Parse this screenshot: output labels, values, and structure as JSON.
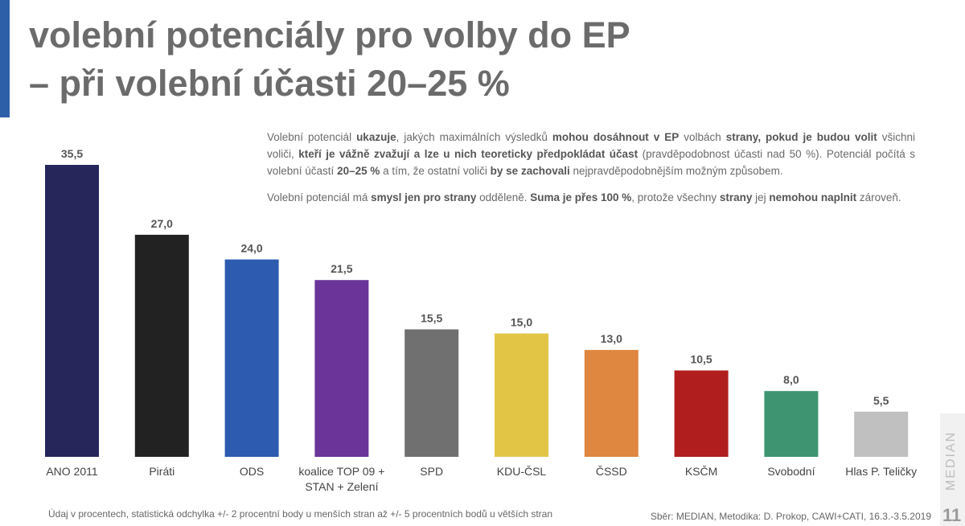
{
  "title": {
    "line1": "volební potenciály pro volby do EP",
    "line2": "– při volební účasti 20–25 %"
  },
  "note": {
    "p1": [
      {
        "t": "Volební potenciál ",
        "b": false
      },
      {
        "t": "ukazuje",
        "b": true
      },
      {
        "t": ", jakých maximálních výsledků ",
        "b": false
      },
      {
        "t": "mohou dosáhnout v EP",
        "b": true
      },
      {
        "t": " volbách ",
        "b": false
      },
      {
        "t": "strany, pokud je budou volit",
        "b": true
      },
      {
        "t": " všichni voliči, ",
        "b": false
      },
      {
        "t": "kteří je vážně zvažují a lze u nich teoreticky předpokládat účast",
        "b": true
      },
      {
        "t": " (pravděpodobnost účasti nad 50 %). Potenciál počítá s volební účastí ",
        "b": false
      },
      {
        "t": "20–25 %",
        "b": true
      },
      {
        "t": " a tím, že ostatní voliči ",
        "b": false
      },
      {
        "t": "by se zachovali",
        "b": true
      },
      {
        "t": " nejpravděpodobnějším možným způsobem.",
        "b": false
      }
    ],
    "p2": [
      {
        "t": "Volební potenciál má ",
        "b": false
      },
      {
        "t": "smysl jen pro strany",
        "b": true
      },
      {
        "t": " odděleně. ",
        "b": false
      },
      {
        "t": "Suma je přes 100 %",
        "b": true
      },
      {
        "t": ", protože všechny ",
        "b": false
      },
      {
        "t": "strany",
        "b": true
      },
      {
        "t": " jej ",
        "b": false
      },
      {
        "t": "nemohou naplnit",
        "b": true
      },
      {
        "t": " zároveň.",
        "b": false
      }
    ]
  },
  "chart_data": {
    "type": "bar",
    "categories": [
      "ANO 2011",
      "Piráti",
      "ODS",
      "koalice TOP 09 + STAN + Zelení",
      "SPD",
      "KDU-ČSL",
      "ČSSD",
      "KSČM",
      "Svobodní",
      "Hlas P. Teličky"
    ],
    "category_lines": [
      [
        "ANO 2011"
      ],
      [
        "Piráti"
      ],
      [
        "ODS"
      ],
      [
        "koalice TOP 09 +",
        "STAN + Zelení"
      ],
      [
        "SPD"
      ],
      [
        "KDU-ČSL"
      ],
      [
        "ČSSD"
      ],
      [
        "KSČM"
      ],
      [
        "Svobodní"
      ],
      [
        "Hlas P. Teličky"
      ]
    ],
    "values": [
      35.5,
      27.0,
      24.0,
      21.5,
      15.5,
      15.0,
      13.0,
      10.5,
      8.0,
      5.5
    ],
    "value_labels": [
      "35,5",
      "27,0",
      "24,0",
      "21,5",
      "15,5",
      "15,0",
      "13,0",
      "10,5",
      "8,0",
      "5,5"
    ],
    "colors": [
      "#26265a",
      "#222222",
      "#2c5bb0",
      "#6a3499",
      "#707070",
      "#e3c546",
      "#df8640",
      "#b01e1e",
      "#3e9470",
      "#c0c0c0"
    ],
    "ylim": [
      0,
      36
    ],
    "grid": false,
    "legend": "none"
  },
  "footer": {
    "note": "Údaj v procentech, statistická odchylka +/- 2 procentní body u menších stran až +/- 5 procentních bodů u větších stran",
    "source": "Sběr: MEDIAN, Metodika: D. Prokop, CAWI+CATI, 16.3.-3.5.2019",
    "brand": "MEDIAN",
    "page_number": "11"
  }
}
